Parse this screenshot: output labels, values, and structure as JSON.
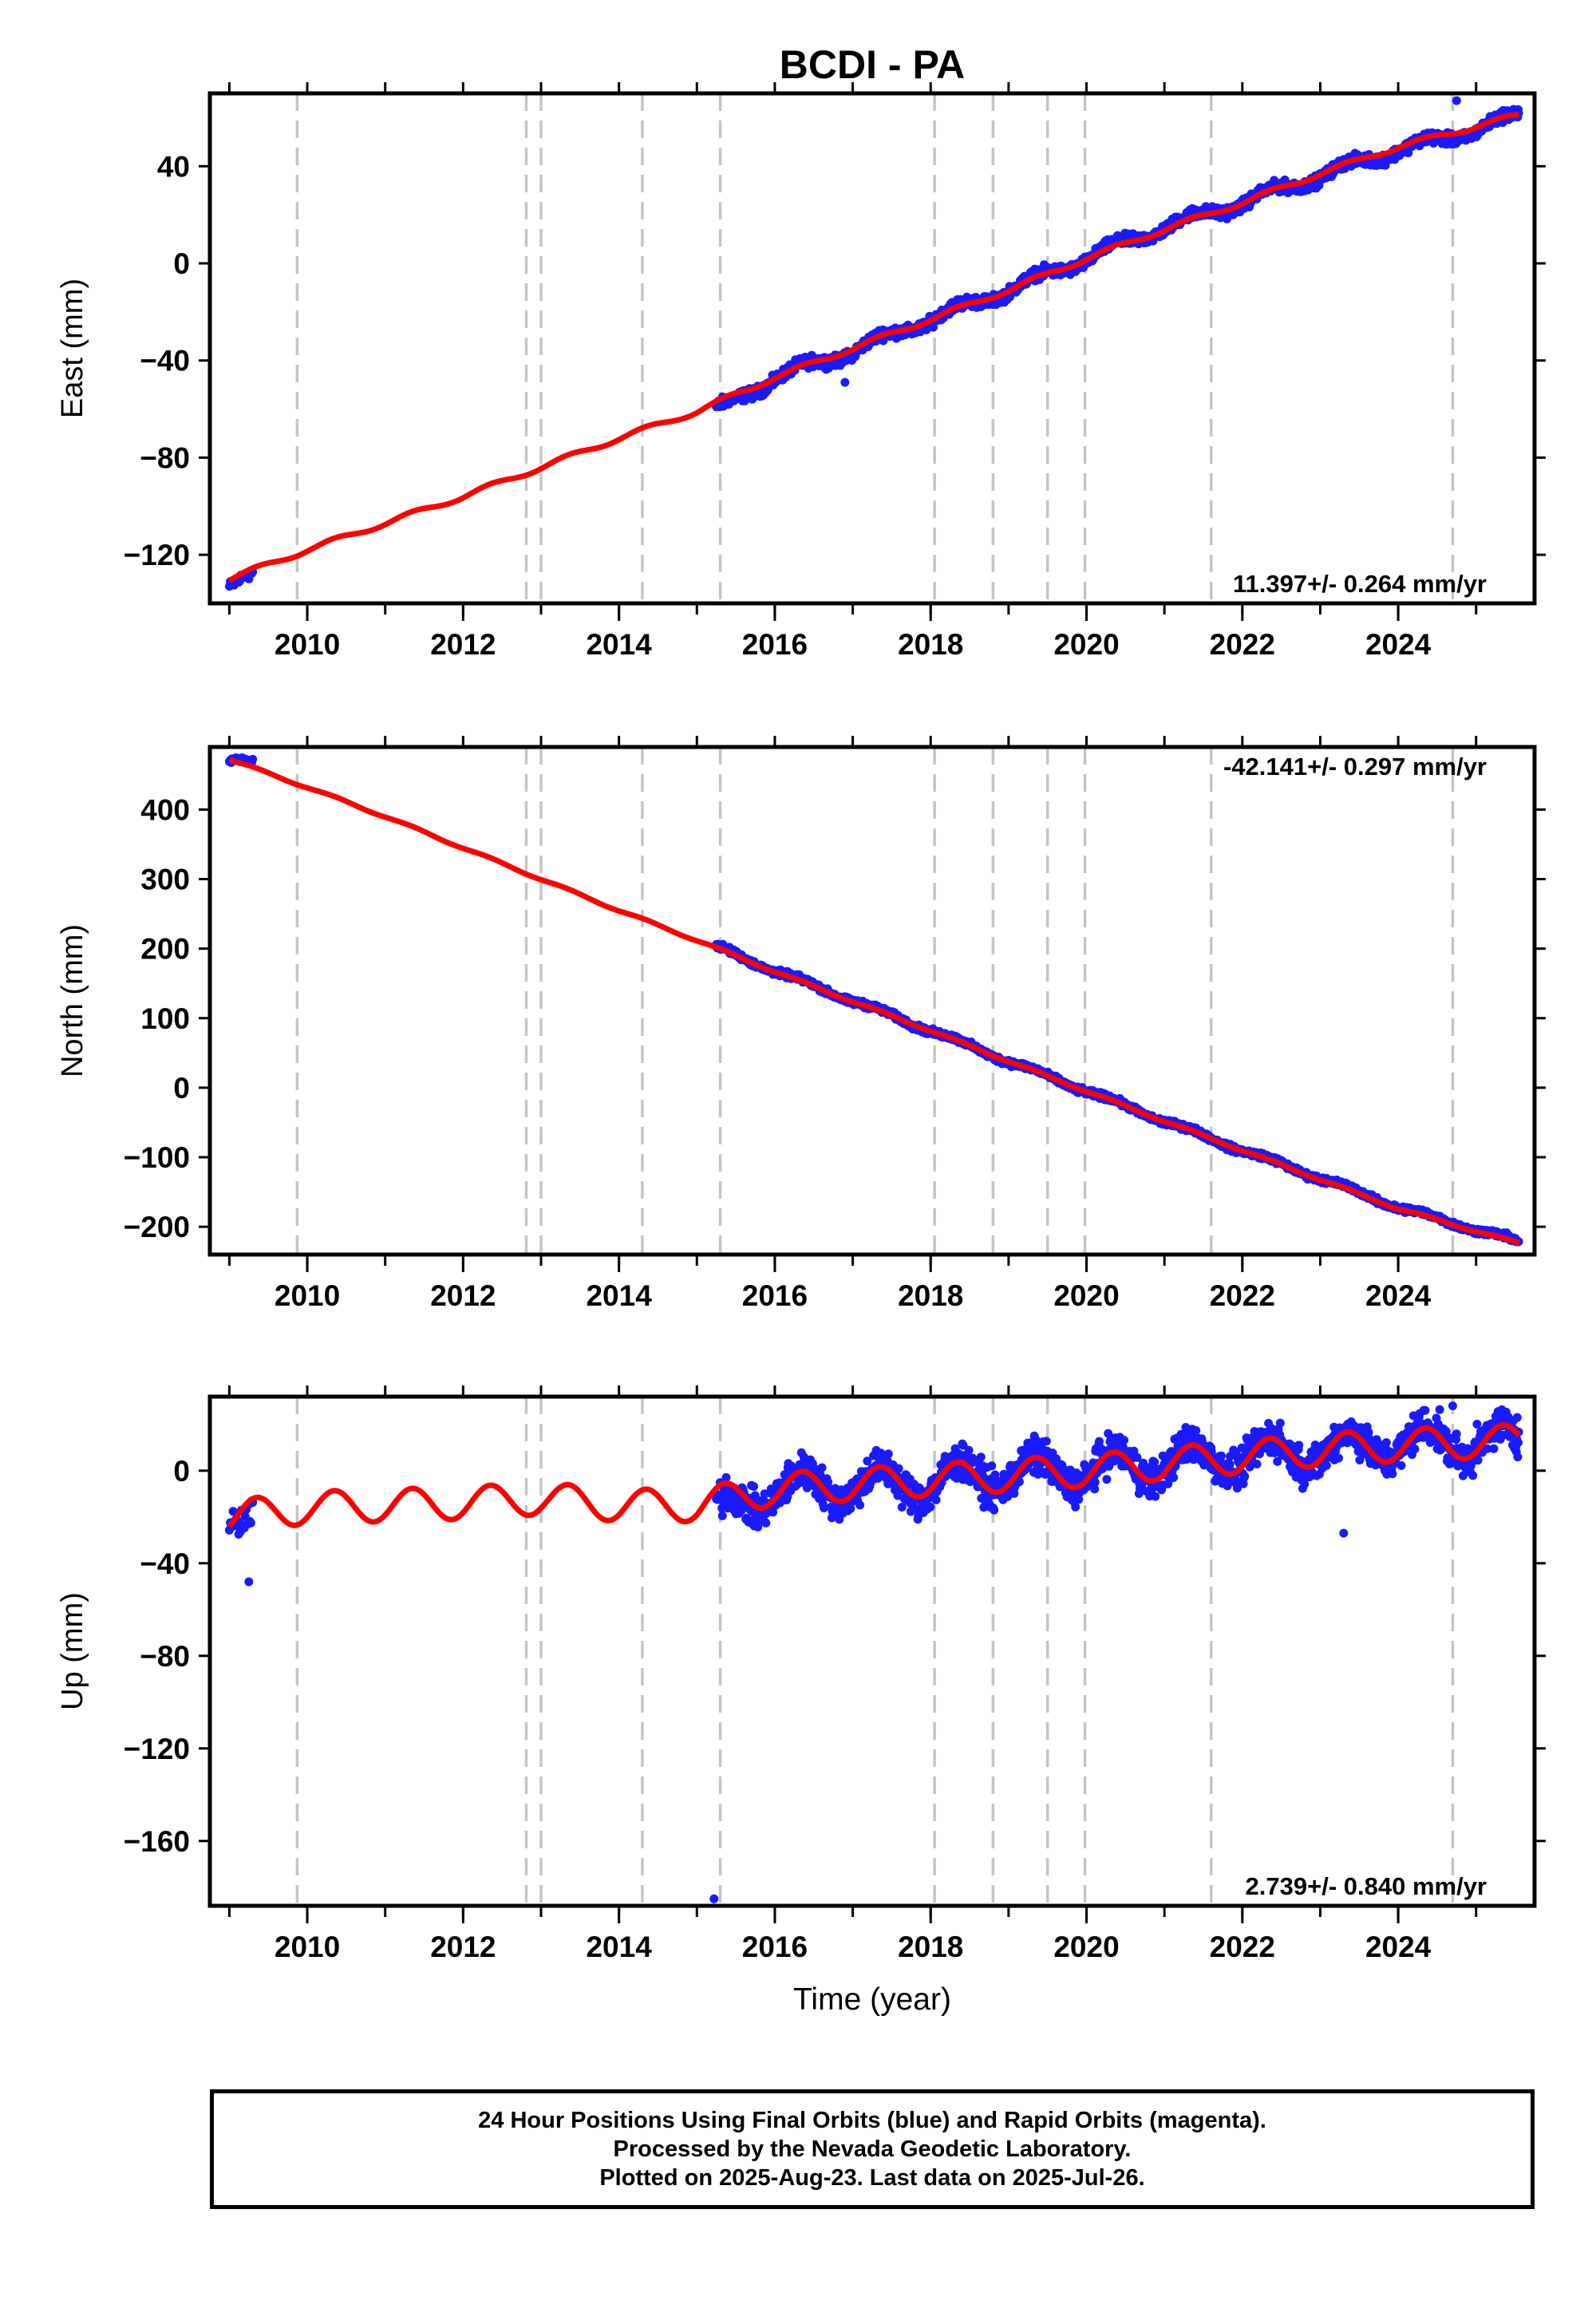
{
  "chart_data": {
    "title": "BCDI - PA",
    "xlabel": "Time (year)",
    "xlim": [
      2008.75,
      2025.75
    ],
    "xticks": [
      "2010",
      "2012",
      "2014",
      "2016",
      "2018",
      "2020",
      "2022",
      "2024"
    ],
    "xtick_values": [
      2010,
      2012,
      2014,
      2016,
      2018,
      2020,
      2022,
      2024
    ],
    "steps": [
      2009.87,
      2012.81,
      2013.0,
      2014.3,
      2015.3,
      2018.05,
      2018.8,
      2019.5,
      2019.98,
      2021.6,
      2024.7
    ],
    "data_start": 2009.0,
    "data_gap": [
      2009.3,
      2015.25
    ],
    "data_end": 2025.55,
    "panels": [
      {
        "type": "scatter",
        "ylabel": "East (mm)",
        "ylim": [
          -140,
          70
        ],
        "yticks": [
          "40",
          "0",
          "−40",
          "−80",
          "−120"
        ],
        "ytick_values": [
          40,
          0,
          -40,
          -80,
          -120
        ],
        "rate": "11.397+/- 0.264 mm/yr",
        "rate_position": "bottom-right",
        "series": [
          {
            "color": "#1a1aff",
            "values_t": [
              2009.0,
              2009.3,
              2015.3,
              2016.0,
              2017.0,
              2018.0,
              2019.0,
              2020.0,
              2021.0,
              2022.0,
              2023.0,
              2024.0,
              2024.7,
              2025.55
            ],
            "values": [
              -132,
              -129,
              -60,
              -47,
              -36,
              -23,
              -11,
              2,
              15,
              25,
              36,
              47,
              52,
              61
            ]
          },
          {
            "color": "#ff0000",
            "values_t": [
              2009.0,
              2010.0,
              2011.0,
              2012.0,
              2013.0,
              2014.0,
              2015.0,
              2016.0,
              2017.0,
              2018.0,
              2019.0,
              2020.0,
              2021.0,
              2022.0,
              2023.0,
              2024.0,
              2025.55
            ],
            "values": [
              -130,
              -118,
              -107,
              -96,
              -84,
              -72,
              -61,
              -47,
              -35,
              -23,
              -11,
              2,
              14,
              25,
              37,
              48,
              61
            ]
          }
        ]
      },
      {
        "type": "scatter",
        "ylabel": "North (mm)",
        "ylim": [
          -240,
          490
        ],
        "yticks": [
          "400",
          "300",
          "200",
          "100",
          "0",
          "−100",
          "−200"
        ],
        "ytick_values": [
          400,
          300,
          200,
          100,
          0,
          -100,
          -200
        ],
        "rate": "-42.141+/- 0.297 mm/yr",
        "rate_position": "top-right",
        "series": [
          {
            "color": "#1a1aff",
            "values_t": [
              2009.0,
              2009.3,
              2015.3,
              2016.0,
              2017.0,
              2018.0,
              2019.0,
              2020.0,
              2021.0,
              2022.0,
              2023.0,
              2024.0,
              2025.55
            ],
            "values": [
              472,
              468,
              200,
              168,
              125,
              82,
              38,
              -5,
              -48,
              -90,
              -130,
              -172,
              -222
            ]
          },
          {
            "color": "#ff0000",
            "values_t": [
              2009.0,
              2010.0,
              2011.0,
              2012.0,
              2013.0,
              2014.0,
              2015.0,
              2016.0,
              2017.0,
              2018.0,
              2019.0,
              2020.0,
              2021.0,
              2022.0,
              2023.0,
              2024.0,
              2025.55
            ],
            "values": [
              472,
              432,
              390,
              345,
              300,
              255,
              212,
              167,
              124,
              82,
              38,
              -5,
              -48,
              -90,
              -132,
              -174,
              -224
            ]
          }
        ]
      },
      {
        "type": "scatter",
        "ylabel": "Up (mm)",
        "ylim": [
          -188,
          32
        ],
        "yticks": [
          "0",
          "−40",
          "−80",
          "−120",
          "−160"
        ],
        "ytick_values": [
          0,
          -40,
          -80,
          -120,
          -160
        ],
        "rate": "2.739+/- 0.840 mm/yr",
        "rate_position": "bottom-right",
        "series": [
          {
            "color": "#1a1aff",
            "values_t": [
              2009.0,
              2009.3,
              2015.3,
              2016.0,
              2017.0,
              2018.0,
              2019.0,
              2020.0,
              2021.0,
              2022.0,
              2023.0,
              2024.0,
              2025.55
            ],
            "values": [
              -22,
              -27,
              -18,
              -8,
              -6,
              -5,
              -1,
              0,
              4,
              6,
              9,
              12,
              13
            ]
          },
          {
            "color": "#ff0000",
            "values_t": [
              2009.0,
              2010.0,
              2011.0,
              2012.0,
              2013.0,
              2014.0,
              2015.0,
              2016.0,
              2017.0,
              2018.0,
              2019.0,
              2020.0,
              2021.0,
              2022.0,
              2023.0,
              2024.0,
              2025.55
            ],
            "values": [
              -20,
              -16,
              -15,
              -14,
              -12,
              -15,
              -15,
              -8,
              -6,
              -4,
              -2,
              0,
              3,
              6,
              9,
              11,
              13
            ]
          }
        ]
      }
    ]
  },
  "footer": {
    "line1": "24 Hour Positions Using Final Orbits (blue) and Rapid Orbits (magenta).",
    "line2": "Processed by the Nevada Geodetic Laboratory.",
    "line3": "Plotted on 2025-Aug-23. Last data on 2025-Jul-26."
  }
}
